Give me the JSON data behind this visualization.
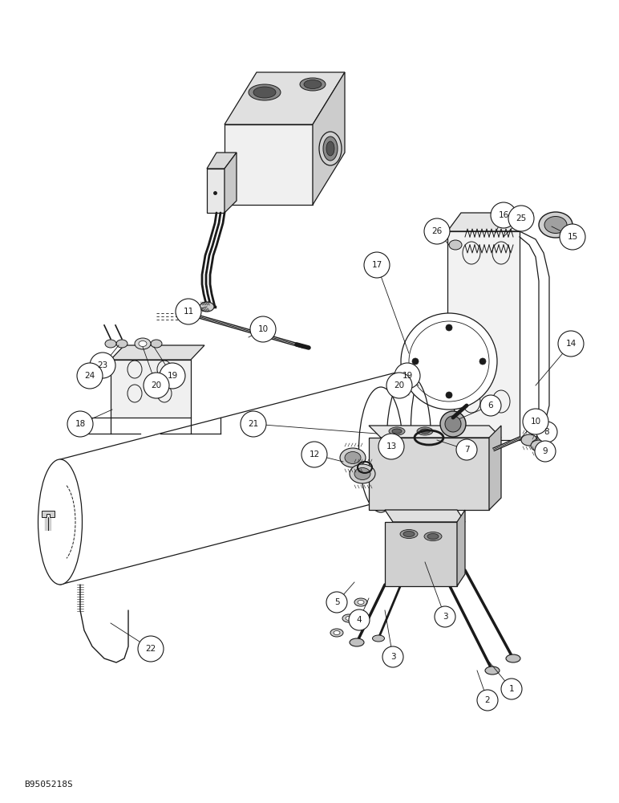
{
  "bg_color": "#ffffff",
  "line_color": "#1a1a1a",
  "fig_w": 7.72,
  "fig_h": 10.0,
  "dpi": 100,
  "watermark": "B9505218S"
}
